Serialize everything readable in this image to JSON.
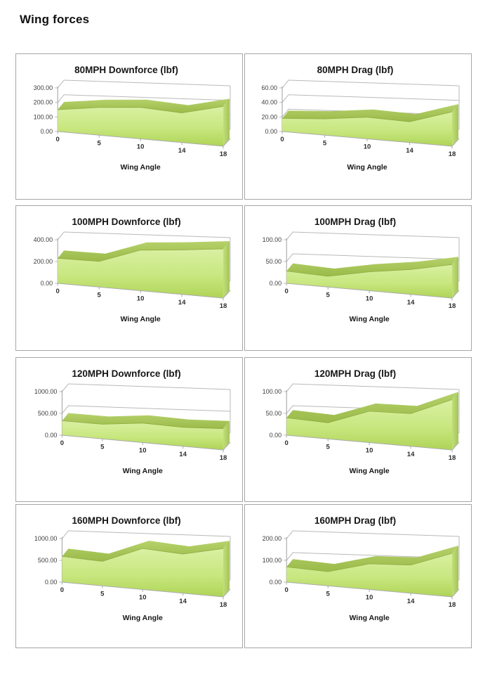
{
  "page": {
    "title": "Wing forces"
  },
  "colors": {
    "area_face_top": "#d9f0a2",
    "area_face_mid": "#c8e77f",
    "area_face_bottom": "#afd457",
    "area_ribbon_light": "#b6d26b",
    "area_ribbon_dark": "#9aba49",
    "area_cap_light": "#c2df79",
    "area_cap_dark": "#a3c45a",
    "seam_line": "#90ad44",
    "gridline_gray": "#b9b9b9",
    "axis_gray": "#9e9e9e",
    "floor_gray": "#ababab",
    "panel_border_gray": "#a6a6a6"
  },
  "chart_data": [
    {
      "type": "area",
      "title": "80MPH Downforce (lbf)",
      "xlabel": "Wing Angle",
      "categories": [
        "0",
        "5",
        "10",
        "14",
        "18"
      ],
      "values": [
        150,
        170,
        175,
        150,
        185
      ],
      "y_tick_labels": [
        "0.00",
        "100.00",
        "200.00",
        "300.00"
      ],
      "ylim": [
        0,
        300
      ],
      "grid": true,
      "legend": "none"
    },
    {
      "type": "area",
      "title": "80MPH Drag (lbf)",
      "xlabel": "Wing Angle",
      "categories": [
        "0",
        "5",
        "10",
        "14",
        "18"
      ],
      "values": [
        18,
        20,
        24,
        21,
        32
      ],
      "y_tick_labels": [
        "0.00",
        "20.00",
        "40.00",
        "60.00"
      ],
      "ylim": [
        0,
        60
      ],
      "grid": true,
      "legend": "none"
    },
    {
      "type": "area",
      "title": "100MPH Downforce (lbf)",
      "xlabel": "Wing Angle",
      "categories": [
        "0",
        "5",
        "10",
        "14",
        "18"
      ],
      "values": [
        230,
        210,
        300,
        300,
        305
      ],
      "y_tick_labels": [
        "0.00",
        "200.00",
        "400.00"
      ],
      "ylim": [
        0,
        400
      ],
      "grid": true,
      "legend": "none"
    },
    {
      "type": "area",
      "title": "100MPH Drag (lbf)",
      "xlabel": "Wing Angle",
      "categories": [
        "0",
        "5",
        "10",
        "14",
        "18"
      ],
      "values": [
        28,
        22,
        35,
        42,
        52
      ],
      "y_tick_labels": [
        "0.00",
        "50.00",
        "100.00"
      ],
      "ylim": [
        0,
        100
      ],
      "grid": true,
      "legend": "none"
    },
    {
      "type": "area",
      "title": "120MPH Downforce (lbf)",
      "xlabel": "Wing Angle",
      "categories": [
        "0",
        "5",
        "10",
        "14",
        "18"
      ],
      "values": [
        330,
        300,
        360,
        320,
        330
      ],
      "y_tick_labels": [
        "0.00",
        "500.00",
        "1000.00"
      ],
      "ylim": [
        0,
        1000
      ],
      "grid": true,
      "legend": "none"
    },
    {
      "type": "area",
      "title": "120MPH Drag (lbf)",
      "xlabel": "Wing Angle",
      "categories": [
        "0",
        "5",
        "10",
        "14",
        "18"
      ],
      "values": [
        40,
        33,
        58,
        55,
        78
      ],
      "y_tick_labels": [
        "0.00",
        "50.00",
        "100.00"
      ],
      "ylim": [
        0,
        100
      ],
      "grid": true,
      "legend": "none"
    },
    {
      "type": "area",
      "title": "160MPH Downforce (lbf)",
      "xlabel": "Wing Angle",
      "categories": [
        "0",
        "5",
        "10",
        "14",
        "18"
      ],
      "values": [
        590,
        500,
        760,
        660,
        750
      ],
      "y_tick_labels": [
        "0.00",
        "500.00",
        "1000.00"
      ],
      "ylim": [
        0,
        1000
      ],
      "grid": true,
      "legend": "none"
    },
    {
      "type": "area",
      "title": "160MPH Drag (lbf)",
      "xlabel": "Wing Angle",
      "categories": [
        "0",
        "5",
        "10",
        "14",
        "18"
      ],
      "values": [
        70,
        58,
        95,
        95,
        135
      ],
      "y_tick_labels": [
        "0.00",
        "100.00",
        "200.00"
      ],
      "ylim": [
        0,
        200
      ],
      "grid": true,
      "legend": "none"
    }
  ]
}
